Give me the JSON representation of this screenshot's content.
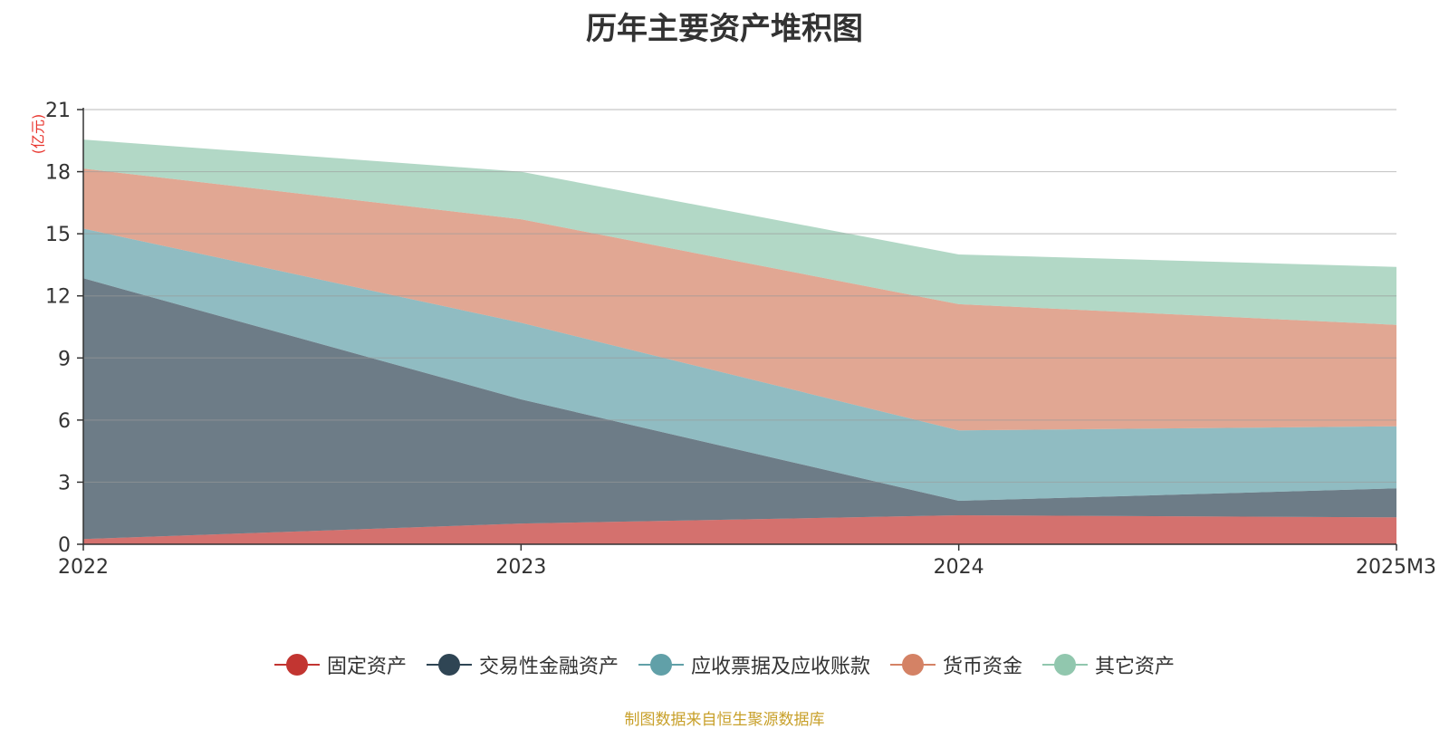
{
  "chart_data": {
    "type": "area",
    "title": "历年主要资产堆积图",
    "unit": "(亿元)",
    "categories": [
      "2022",
      "2023",
      "2024",
      "2025M3"
    ],
    "ylim": [
      0,
      21
    ],
    "yticks": [
      0,
      3,
      6,
      9,
      12,
      15,
      18,
      21
    ],
    "stacked": true,
    "grid": true,
    "legend_position": "bottom",
    "series": [
      {
        "name": "固定资产",
        "values": [
          0.25,
          1.0,
          1.4,
          1.3
        ],
        "color": "#c23531"
      },
      {
        "name": "交易性金融资产",
        "values": [
          12.6,
          6.0,
          0.7,
          1.4
        ],
        "color": "#2f4554"
      },
      {
        "name": "应收票据及应收账款",
        "values": [
          2.4,
          3.7,
          3.4,
          3.0
        ],
        "color": "#61a0a8"
      },
      {
        "name": "货币资金",
        "values": [
          2.9,
          5.0,
          6.1,
          4.9
        ],
        "color": "#d48265"
      },
      {
        "name": "其它资产",
        "values": [
          1.4,
          2.3,
          2.4,
          2.8
        ],
        "color": "#91c7ae"
      }
    ]
  },
  "source": "制图数据来自恒生聚源数据库"
}
